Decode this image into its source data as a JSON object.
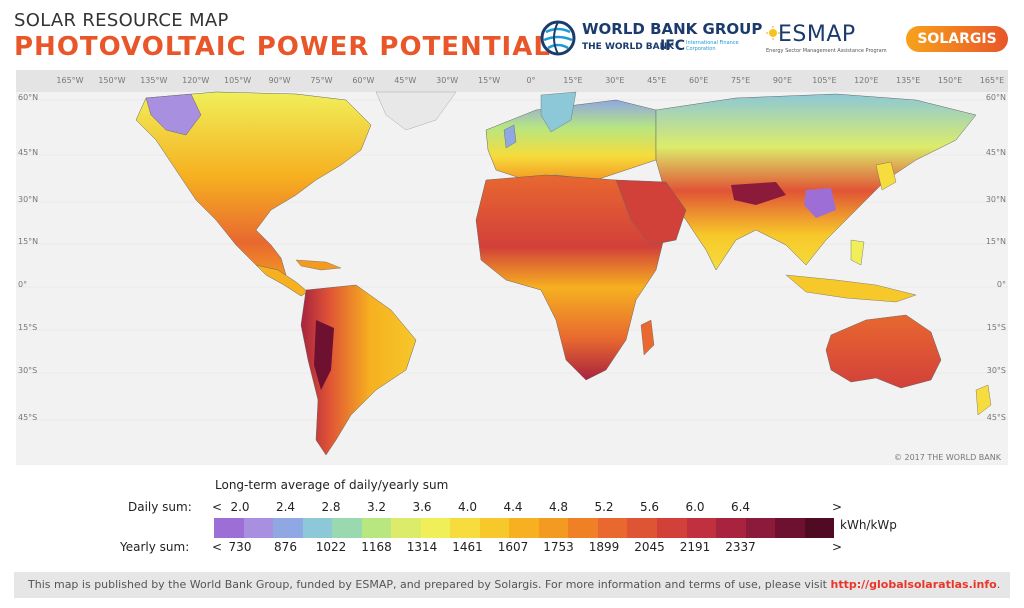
{
  "header": {
    "subtitle": "SOLAR RESOURCE MAP",
    "title": "PHOTOVOLTAIC POWER POTENTIAL"
  },
  "logos": {
    "world_bank_group": "WORLD BANK GROUP",
    "the_world_bank": "THE WORLD BANK",
    "ifc": "IFC",
    "ifc_sub": "International Finance Corporation",
    "esmap": "ESMAP",
    "esmap_sub": "Energy Sector Management Assistance Program",
    "solargis": "SOLARGIS"
  },
  "map": {
    "lon_labels": [
      "165°W",
      "150°W",
      "135°W",
      "120°W",
      "105°W",
      "90°W",
      "75°W",
      "60°W",
      "45°W",
      "30°W",
      "15°W",
      "0°",
      "15°E",
      "30°E",
      "45°E",
      "60°E",
      "75°E",
      "90°E",
      "105°E",
      "120°E",
      "135°E",
      "150°E",
      "165°E"
    ],
    "lat_labels": [
      "60°N",
      "45°N",
      "30°N",
      "15°N",
      "0°",
      "15°S",
      "30°S",
      "45°S"
    ],
    "copyright": "© 2017 THE WORLD BANK",
    "colors": {
      "ocean": "#f2f2f2",
      "land_outline": "#666666"
    }
  },
  "legend": {
    "title": "Long-term average of daily/yearly sum",
    "daily_label": "Daily sum:",
    "yearly_label": "Yearly sum:",
    "less": "<",
    "greater": ">",
    "daily_ticks": [
      "2.0",
      "2.4",
      "2.8",
      "3.2",
      "3.6",
      "4.0",
      "4.4",
      "4.8",
      "5.2",
      "5.6",
      "6.0",
      "6.4"
    ],
    "yearly_ticks": [
      "730",
      "876",
      "1022",
      "1168",
      "1314",
      "1461",
      "1607",
      "1753",
      "1899",
      "2045",
      "2191",
      "2337"
    ],
    "unit": "kWh/kWp",
    "colors": [
      "#9d6fd6",
      "#a98fe0",
      "#8fa7e2",
      "#8cc8d8",
      "#9ad9b0",
      "#b8e680",
      "#dcec6a",
      "#f0ef5a",
      "#f6dc3c",
      "#f7c82a",
      "#f6b020",
      "#f39a22",
      "#ef8026",
      "#e86830",
      "#e05436",
      "#d2403a",
      "#c0303e",
      "#a8233e",
      "#8c1a3a",
      "#6e1030",
      "#500a24"
    ]
  },
  "footer": {
    "text": "This map is published by the World Bank Group, funded by ESMAP, and prepared by Solargis. For more information and terms of use, please visit ",
    "link": "http://globalsolaratlas.info",
    "end": "."
  }
}
